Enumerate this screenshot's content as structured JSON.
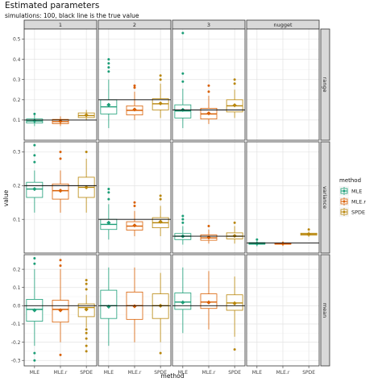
{
  "chart_data": {
    "type": "boxplot",
    "title": "Estimated parameters",
    "subtitle": "simulations: 100, black line is the true value",
    "xlabel": "method",
    "ylabel": "value",
    "methods": [
      "MLE",
      "MLE.r",
      "SPDE"
    ],
    "col_facets": [
      "1",
      "2",
      "3",
      "nugget"
    ],
    "row_facets": [
      {
        "name": "range",
        "ylim": [
          0.0,
          0.55
        ],
        "ticks": [
          0.1,
          0.2,
          0.3,
          0.4,
          0.5
        ]
      },
      {
        "name": "variance",
        "ylim": [
          0.0,
          0.33
        ],
        "ticks": [
          0.1,
          0.2,
          0.3
        ]
      },
      {
        "name": "mean",
        "ylim": [
          -0.33,
          0.28
        ],
        "ticks": [
          -0.3,
          -0.2,
          -0.1,
          0.0,
          0.1,
          0.2
        ]
      }
    ],
    "legend": {
      "title": "method",
      "position": "right",
      "items": [
        "MLE",
        "MLE.r",
        "SPDE"
      ]
    },
    "colors": {
      "MLE": "#1b9e77",
      "MLE.r": "#d95f02",
      "SPDE": "#b8860b"
    },
    "grid": true,
    "panels": [
      {
        "row": "range",
        "col": "1",
        "true_value": 0.1,
        "boxes": [
          {
            "method": "MLE",
            "q1": 0.085,
            "median": 0.095,
            "q3": 0.105,
            "low": 0.07,
            "high": 0.125,
            "mean": 0.096,
            "outliers": [
              0.13
            ]
          },
          {
            "method": "MLE.r",
            "q1": 0.082,
            "median": 0.092,
            "q3": 0.103,
            "low": 0.07,
            "high": 0.118,
            "mean": 0.093,
            "outliers": []
          },
          {
            "method": "SPDE",
            "q1": 0.112,
            "median": 0.122,
            "q3": 0.135,
            "low": 0.1,
            "high": 0.15,
            "mean": 0.124,
            "outliers": []
          }
        ]
      },
      {
        "row": "range",
        "col": "2",
        "true_value": 0.2,
        "boxes": [
          {
            "method": "MLE",
            "q1": 0.13,
            "median": 0.165,
            "q3": 0.2,
            "low": 0.06,
            "high": 0.3,
            "mean": 0.175,
            "outliers": [
              0.34,
              0.36,
              0.38,
              0.4
            ]
          },
          {
            "method": "MLE.r",
            "q1": 0.125,
            "median": 0.148,
            "q3": 0.17,
            "low": 0.1,
            "high": 0.24,
            "mean": 0.152,
            "outliers": [
              0.26,
              0.27
            ]
          },
          {
            "method": "SPDE",
            "q1": 0.15,
            "median": 0.18,
            "q3": 0.205,
            "low": 0.11,
            "high": 0.28,
            "mean": 0.182,
            "outliers": [
              0.3,
              0.32
            ]
          }
        ]
      },
      {
        "row": "range",
        "col": "3",
        "true_value": 0.15,
        "boxes": [
          {
            "method": "MLE",
            "q1": 0.11,
            "median": 0.145,
            "q3": 0.175,
            "low": 0.06,
            "high": 0.255,
            "mean": 0.15,
            "outliers": [
              0.29,
              0.33,
              0.53
            ]
          },
          {
            "method": "MLE.r",
            "q1": 0.105,
            "median": 0.13,
            "q3": 0.158,
            "low": 0.08,
            "high": 0.22,
            "mean": 0.133,
            "outliers": [
              0.24,
              0.27
            ]
          },
          {
            "method": "SPDE",
            "q1": 0.14,
            "median": 0.17,
            "q3": 0.2,
            "low": 0.11,
            "high": 0.25,
            "mean": 0.173,
            "outliers": [
              0.28,
              0.3
            ]
          }
        ]
      },
      {
        "row": "range",
        "col": "nugget",
        "true_value": null,
        "boxes": []
      },
      {
        "row": "variance",
        "col": "1",
        "true_value": 0.2,
        "boxes": [
          {
            "method": "MLE",
            "q1": 0.165,
            "median": 0.19,
            "q3": 0.21,
            "low": 0.12,
            "high": 0.245,
            "mean": 0.19,
            "outliers": [
              0.27,
              0.29,
              0.32
            ]
          },
          {
            "method": "MLE.r",
            "q1": 0.16,
            "median": 0.185,
            "q3": 0.205,
            "low": 0.12,
            "high": 0.245,
            "mean": 0.185,
            "outliers": [
              0.28,
              0.3
            ]
          },
          {
            "method": "SPDE",
            "q1": 0.165,
            "median": 0.195,
            "q3": 0.225,
            "low": 0.12,
            "high": 0.28,
            "mean": 0.195,
            "outliers": [
              0.3
            ]
          }
        ]
      },
      {
        "row": "variance",
        "col": "2",
        "true_value": 0.1,
        "boxes": [
          {
            "method": "MLE",
            "q1": 0.07,
            "median": 0.085,
            "q3": 0.1,
            "low": 0.04,
            "high": 0.145,
            "mean": 0.09,
            "outliers": [
              0.16,
              0.18,
              0.19
            ]
          },
          {
            "method": "MLE.r",
            "q1": 0.068,
            "median": 0.08,
            "q3": 0.093,
            "low": 0.05,
            "high": 0.125,
            "mean": 0.082,
            "outliers": [
              0.14,
              0.15
            ]
          },
          {
            "method": "SPDE",
            "q1": 0.075,
            "median": 0.09,
            "q3": 0.105,
            "low": 0.05,
            "high": 0.14,
            "mean": 0.093,
            "outliers": [
              0.16,
              0.17
            ]
          }
        ]
      },
      {
        "row": "variance",
        "col": "3",
        "true_value": 0.05,
        "boxes": [
          {
            "method": "MLE",
            "q1": 0.04,
            "median": 0.05,
            "q3": 0.058,
            "low": 0.025,
            "high": 0.08,
            "mean": 0.05,
            "outliers": [
              0.09,
              0.1,
              0.11
            ]
          },
          {
            "method": "MLE.r",
            "q1": 0.038,
            "median": 0.045,
            "q3": 0.054,
            "low": 0.028,
            "high": 0.07,
            "mean": 0.046,
            "outliers": [
              0.08
            ]
          },
          {
            "method": "SPDE",
            "q1": 0.042,
            "median": 0.05,
            "q3": 0.06,
            "low": 0.028,
            "high": 0.08,
            "mean": 0.051,
            "outliers": [
              0.09
            ]
          }
        ]
      },
      {
        "row": "variance",
        "col": "nugget",
        "true_value": 0.03,
        "boxes": [
          {
            "method": "MLE",
            "q1": 0.026,
            "median": 0.028,
            "q3": 0.031,
            "low": 0.02,
            "high": 0.036,
            "mean": 0.028,
            "outliers": [
              0.04
            ]
          },
          {
            "method": "MLE.r",
            "q1": 0.026,
            "median": 0.028,
            "q3": 0.03,
            "low": 0.021,
            "high": 0.035,
            "mean": 0.028,
            "outliers": []
          },
          {
            "method": "SPDE",
            "q1": 0.053,
            "median": 0.056,
            "q3": 0.059,
            "low": 0.048,
            "high": 0.064,
            "mean": 0.056,
            "outliers": [
              0.07
            ]
          }
        ]
      },
      {
        "row": "mean",
        "col": "1",
        "true_value": 0.0,
        "boxes": [
          {
            "method": "MLE",
            "q1": -0.085,
            "median": -0.02,
            "q3": 0.035,
            "low": -0.22,
            "high": 0.2,
            "mean": -0.025,
            "outliers": [
              -0.3,
              -0.26,
              0.23,
              0.26
            ]
          },
          {
            "method": "MLE.r",
            "q1": -0.09,
            "median": -0.02,
            "q3": 0.03,
            "low": -0.2,
            "high": 0.2,
            "mean": -0.025,
            "outliers": [
              -0.27,
              0.22,
              0.25
            ]
          },
          {
            "method": "SPDE",
            "q1": -0.06,
            "median": -0.01,
            "q3": 0.01,
            "low": -0.12,
            "high": 0.06,
            "mean": -0.02,
            "outliers": [
              -0.25,
              -0.22,
              -0.18,
              -0.15,
              -0.13,
              0.09,
              0.12,
              0.14
            ]
          }
        ]
      },
      {
        "row": "mean",
        "col": "2",
        "true_value": 0.0,
        "boxes": [
          {
            "method": "MLE",
            "q1": -0.07,
            "median": 0.0,
            "q3": 0.085,
            "low": -0.22,
            "high": 0.21,
            "mean": -0.005,
            "outliers": []
          },
          {
            "method": "MLE.r",
            "q1": -0.075,
            "median": 0.0,
            "q3": 0.075,
            "low": -0.2,
            "high": 0.21,
            "mean": -0.003,
            "outliers": []
          },
          {
            "method": "SPDE",
            "q1": -0.07,
            "median": 0.0,
            "q3": 0.065,
            "low": -0.2,
            "high": 0.18,
            "mean": 0.0,
            "outliers": [
              -0.26
            ]
          }
        ]
      },
      {
        "row": "mean",
        "col": "3",
        "true_value": 0.0,
        "boxes": [
          {
            "method": "MLE",
            "q1": -0.02,
            "median": 0.02,
            "q3": 0.07,
            "low": -0.15,
            "high": 0.21,
            "mean": 0.018,
            "outliers": []
          },
          {
            "method": "MLE.r",
            "q1": -0.015,
            "median": 0.02,
            "q3": 0.065,
            "low": -0.13,
            "high": 0.19,
            "mean": 0.018,
            "outliers": []
          },
          {
            "method": "SPDE",
            "q1": -0.025,
            "median": 0.015,
            "q3": 0.06,
            "low": -0.17,
            "high": 0.16,
            "mean": 0.013,
            "outliers": [
              -0.24
            ]
          }
        ]
      },
      {
        "row": "mean",
        "col": "nugget",
        "true_value": null,
        "boxes": []
      }
    ]
  }
}
